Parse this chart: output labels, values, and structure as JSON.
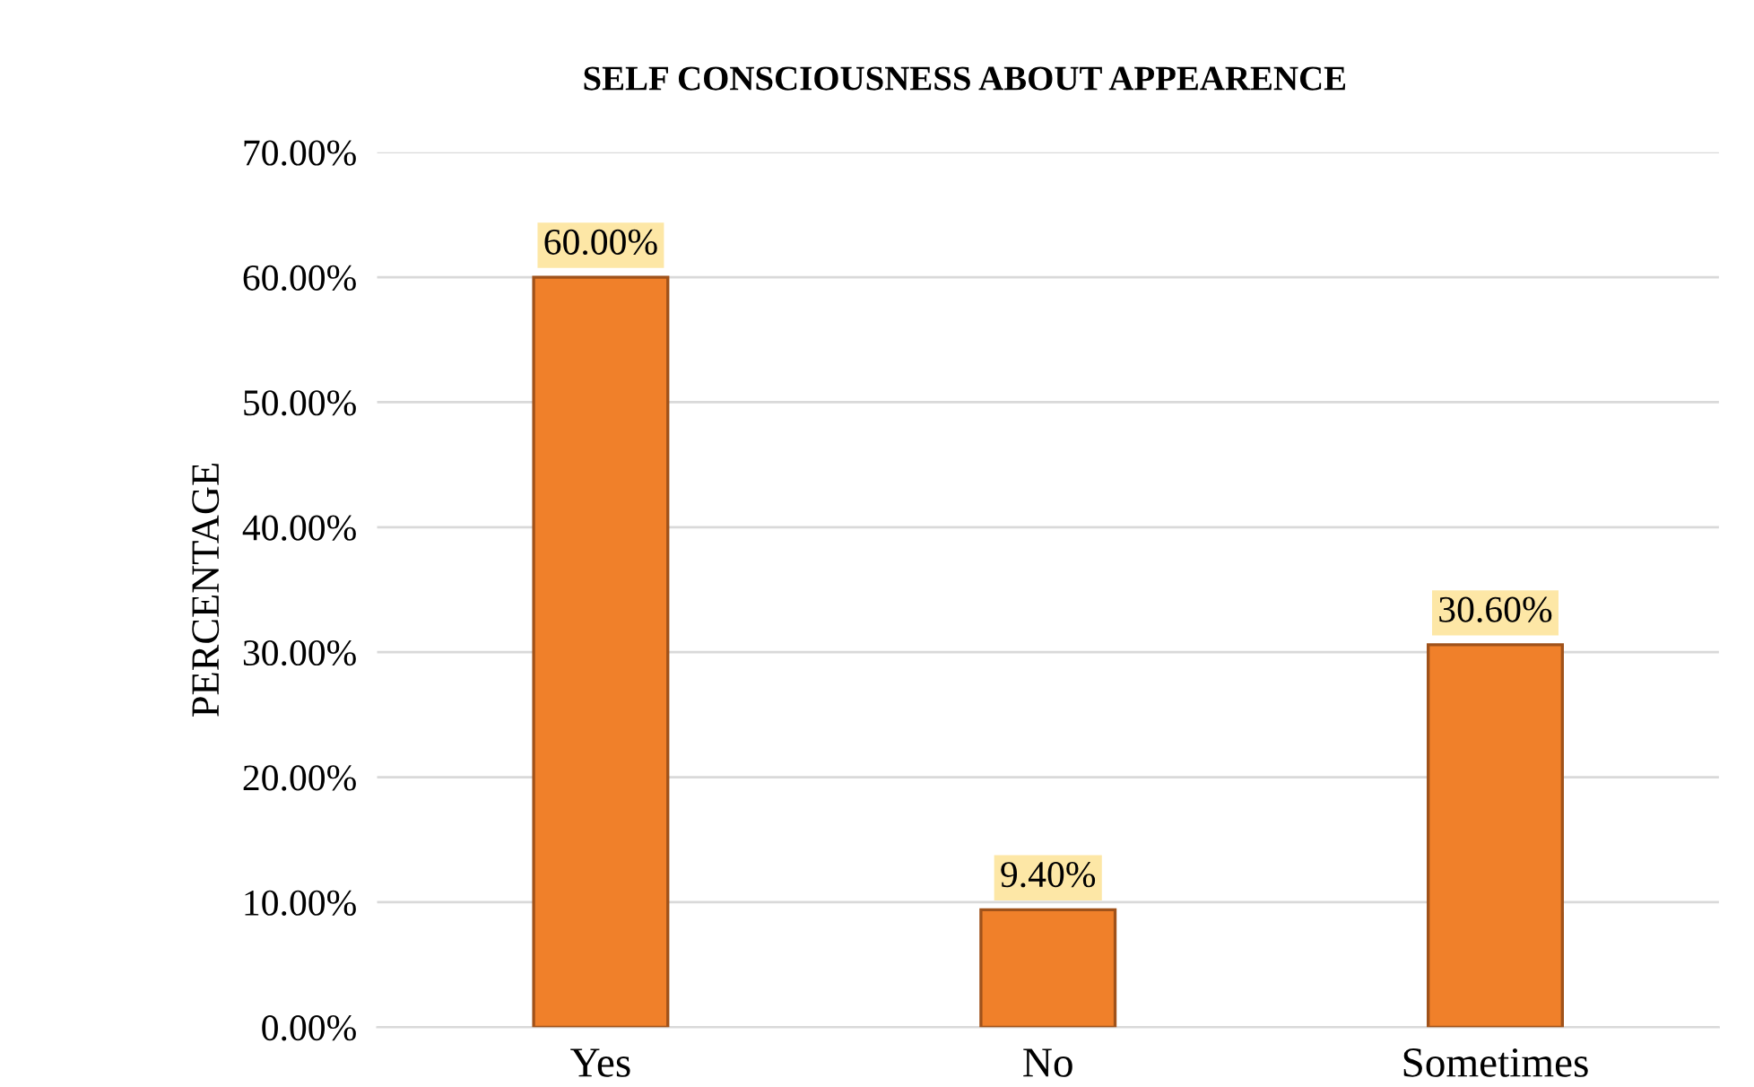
{
  "chart_data": {
    "type": "bar",
    "title": "SELF CONSCIOUSNESS ABOUT APPEARENCE",
    "ylabel": "PERCENTAGE",
    "categories": [
      "Yes",
      "No",
      "Sometimes"
    ],
    "values": [
      60,
      9.4,
      30.6
    ],
    "value_labels": [
      "60.00%",
      "9.40%",
      "30.60%"
    ],
    "color": "#f0802a",
    "ylim": [
      0,
      70
    ],
    "yticks": [
      {
        "value": 0,
        "label": "0.00%"
      },
      {
        "value": 10,
        "label": "10.00%"
      },
      {
        "value": 20,
        "label": "20.00%"
      },
      {
        "value": 30,
        "label": "30.00%"
      },
      {
        "value": 40,
        "label": "40.00%"
      },
      {
        "value": 50,
        "label": "50.00%"
      },
      {
        "value": 60,
        "label": "60.00%"
      },
      {
        "value": 70,
        "label": "70.00%"
      }
    ],
    "grid": "y"
  }
}
